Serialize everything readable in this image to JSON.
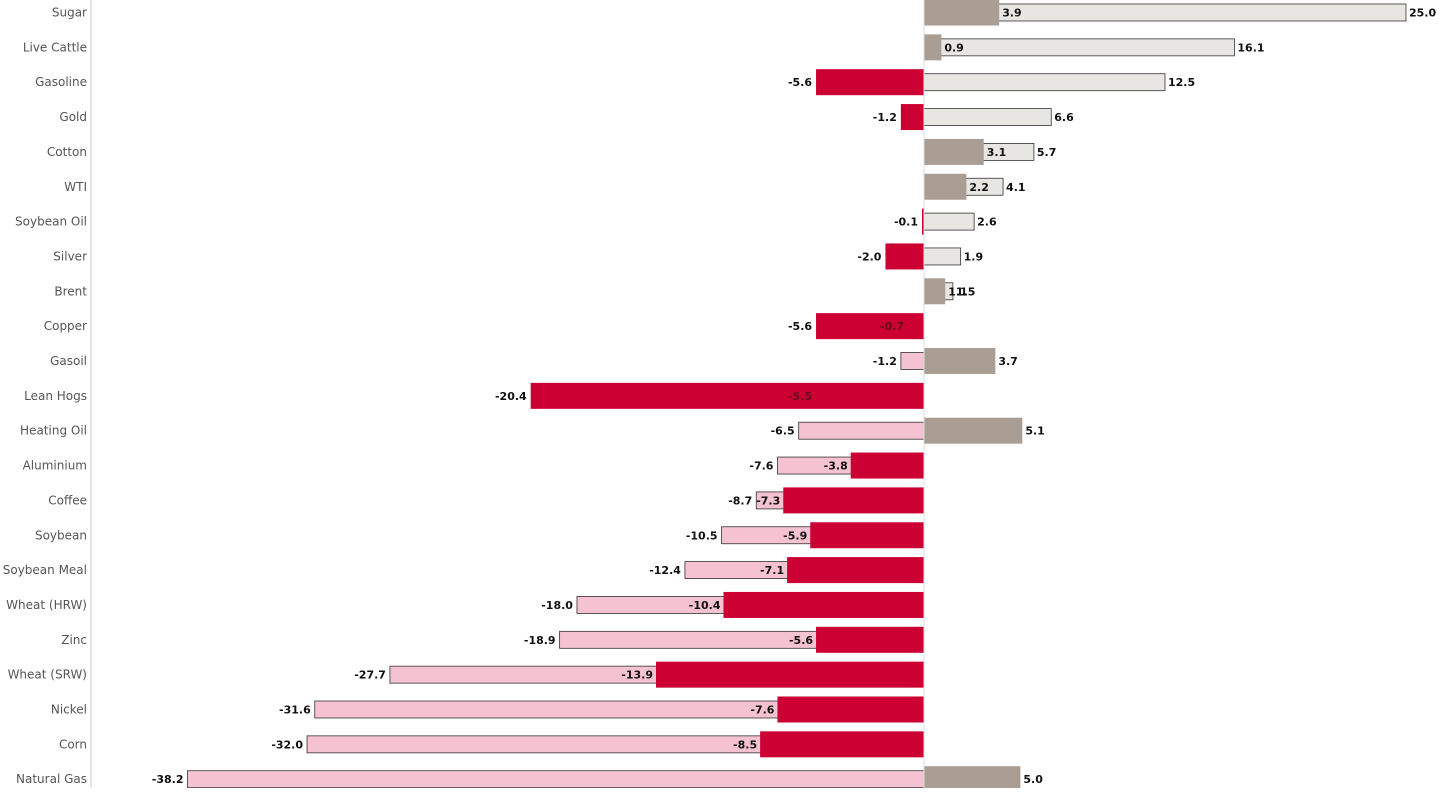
{
  "chart_data": {
    "type": "bar",
    "orientation": "horizontal",
    "title": "",
    "xlabel": "",
    "ylabel": "",
    "grid": false,
    "xlim": [
      -38.2,
      25.0
    ],
    "categories": [
      "Sugar",
      "Live Cattle",
      "Gasoline",
      "Gold",
      "Cotton",
      "WTI",
      "Soybean Oil",
      "Silver",
      "Brent",
      "Copper",
      "Gasoil",
      "Lean Hogs",
      "Heating Oil",
      "Aluminium",
      "Coffee",
      "Soybean",
      "Soybean Meal",
      "Wheat (HRW)",
      "Zinc",
      "Wheat (SRW)",
      "Nickel",
      "Corn",
      "Natural Gas"
    ],
    "series": [
      {
        "values": [
          25.0,
          16.1,
          12.5,
          6.6,
          5.7,
          4.1,
          2.6,
          1.9,
          1.5,
          0.0,
          -1.2,
          0.0,
          -6.5,
          -7.6,
          -8.7,
          -10.5,
          -12.4,
          -18.0,
          -18.9,
          -27.7,
          -31.6,
          -32.0,
          -38.2
        ],
        "value_labels": [
          "25.0",
          "16.1",
          "12.5",
          "6.6",
          "5.7",
          "4.1",
          "2.6",
          "1.9",
          "1.5",
          "",
          "-1.2",
          "",
          "-6.5",
          "-7.6",
          "-8.7",
          "-10.5",
          "-12.4",
          "-18.0",
          "-18.9",
          "-27.7",
          "-31.6",
          "-32.0",
          "-38.2"
        ],
        "color_positive": "#e8e6e3",
        "color_negative": "#f4c2d0",
        "outline": "#333333"
      },
      {
        "values": [
          3.9,
          0.9,
          -5.6,
          -1.2,
          3.1,
          2.2,
          -0.1,
          -2.0,
          1.1,
          -5.6,
          3.7,
          -20.4,
          5.1,
          -3.8,
          -7.3,
          -5.9,
          -7.1,
          -10.4,
          -5.6,
          -13.9,
          -7.6,
          -8.5,
          5.0
        ],
        "value_labels": [
          "3.9",
          "0.9",
          "-5.6",
          "-1.2",
          "3.1",
          "2.2",
          "-0.1",
          "-2.0",
          "1.1",
          "-5.6",
          "3.7",
          "-20.4",
          "5.1",
          "-3.8",
          "-7.3",
          "-5.9",
          "-7.1",
          "-10.4",
          "-5.6",
          "-13.9",
          "-7.6",
          "-8.5",
          "5.0"
        ],
        "color_positive": "#aa9e94",
        "color_negative": "#cc0033"
      }
    ],
    "overlay_labels": [
      "",
      "",
      "",
      "",
      "",
      "",
      "",
      "",
      "",
      "-0.7",
      "",
      "-5.5",
      "",
      "",
      "",
      "",
      "",
      "",
      "",
      "",
      "",
      "",
      ""
    ],
    "colors": {
      "axis": "#cccccc",
      "center": "#dddddd"
    }
  }
}
